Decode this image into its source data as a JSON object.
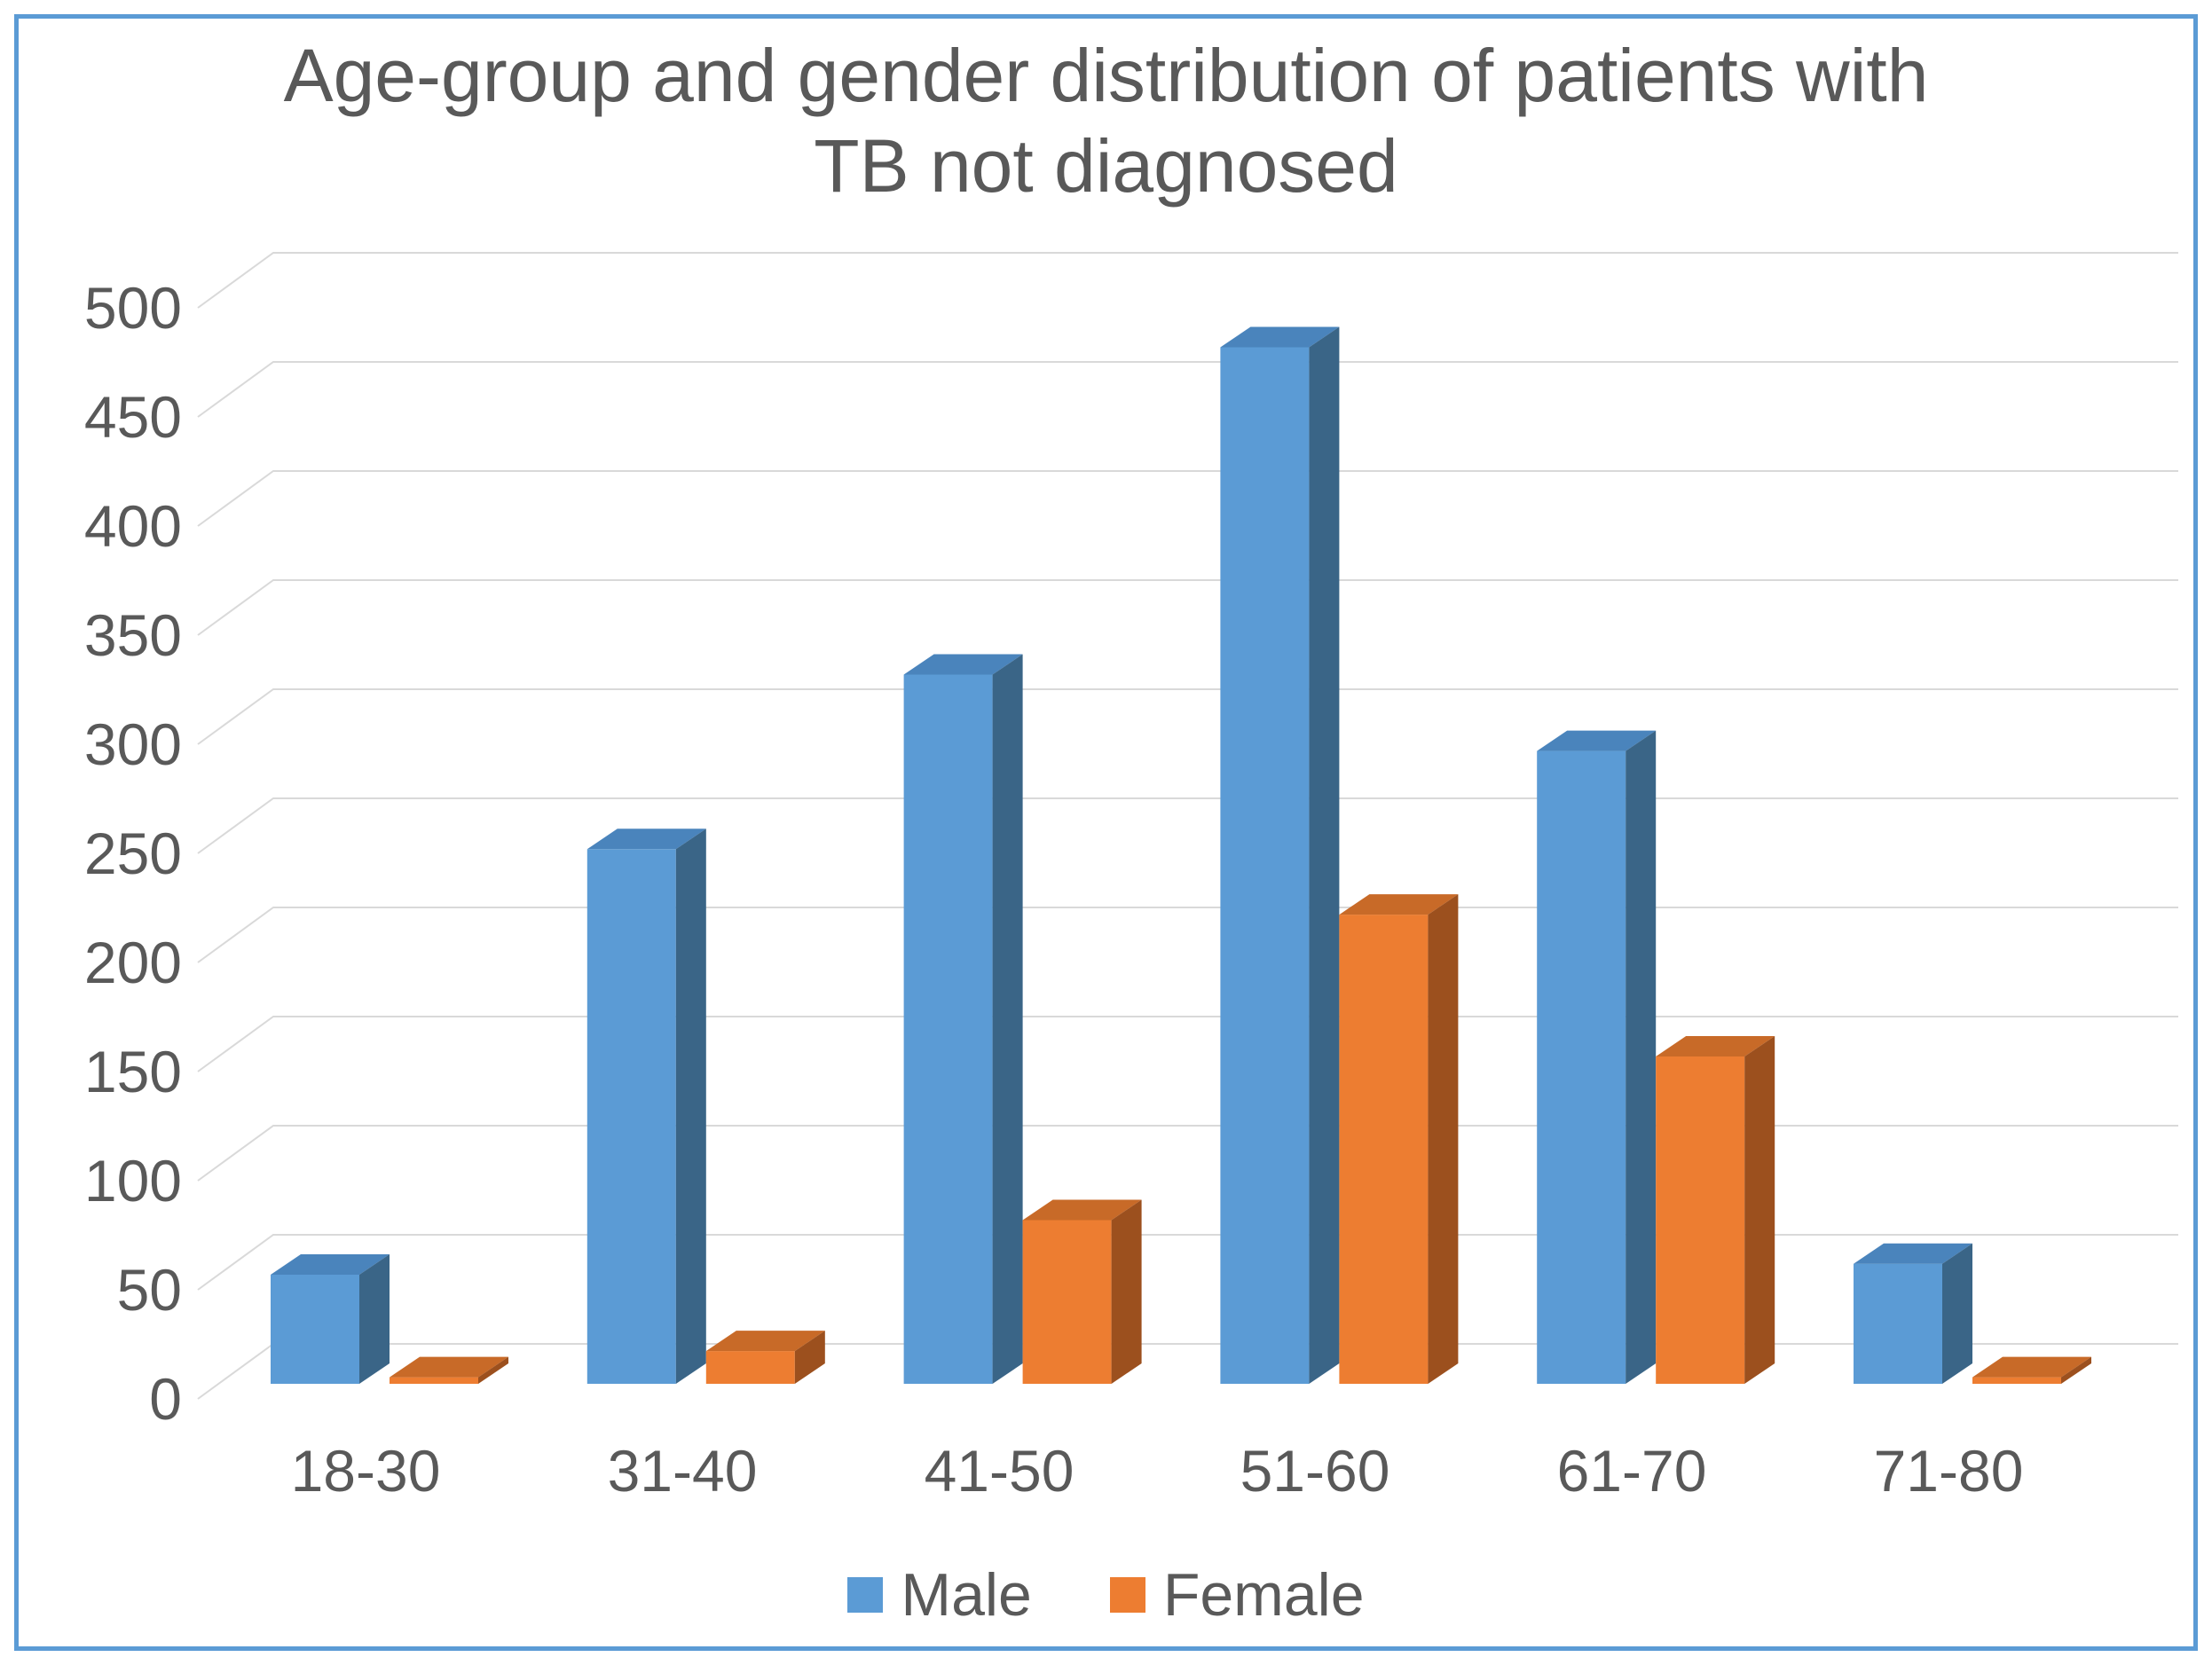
{
  "title": {
    "line1": "Age-group and gender distribution of patients with",
    "line2": "TB not diagnosed"
  },
  "chart_data": {
    "type": "bar",
    "variant": "3d-clustered-column",
    "title": "Age-group and gender distribution of patients with TB not diagnosed",
    "categories": [
      "18-30",
      "31-40",
      "41-50",
      "51-60",
      "61-70",
      "71-80"
    ],
    "series": [
      {
        "name": "Male",
        "color": "#5B9BD5",
        "top_color": "#4A84BC",
        "side_color": "#3A6587",
        "values": [
          50,
          245,
          325,
          475,
          290,
          55
        ]
      },
      {
        "name": "Female",
        "color": "#ED7D31",
        "top_color": "#C86A28",
        "side_color": "#9C501E",
        "values": [
          3,
          15,
          75,
          215,
          150,
          3
        ]
      }
    ],
    "xlabel": "",
    "ylabel": "",
    "ylim": [
      0,
      500
    ],
    "ytick_step": 50,
    "ytick_labels": [
      "0",
      "50",
      "100",
      "150",
      "200",
      "250",
      "300",
      "350",
      "400",
      "450",
      "500"
    ],
    "grid": true,
    "legend_position": "bottom"
  },
  "legend": {
    "items": [
      {
        "label": "Male",
        "color": "#5B9BD5"
      },
      {
        "label": "Female",
        "color": "#ED7D31"
      }
    ]
  },
  "colors": {
    "text": "#595959",
    "gridline": "#D9D9D9",
    "page_border": "#5B9BD5",
    "background": "#FFFFFF"
  }
}
